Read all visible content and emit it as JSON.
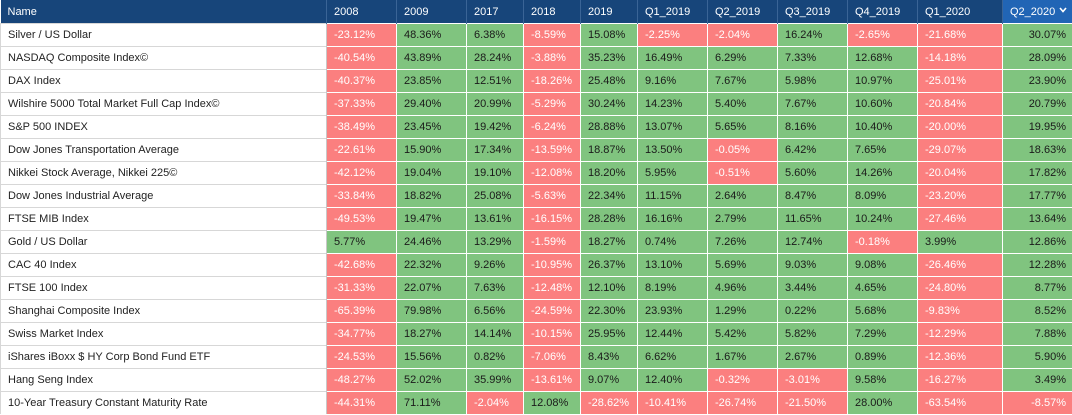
{
  "columns": [
    "Name",
    "2008",
    "2009",
    "2017",
    "2018",
    "2019",
    "Q1_2019",
    "Q2_2019",
    "Q3_2019",
    "Q4_2019",
    "Q1_2020",
    "Q2_2020"
  ],
  "sorted_column": "Q2_2020",
  "sort_icon": "chevron-down-icon",
  "colors": {
    "header": "#17457a",
    "header_sorted": "#2165b5",
    "positive": "#80c47f",
    "negative": "#fb7f7f"
  },
  "rows": [
    {
      "name": "Silver / US Dollar",
      "values": [
        "-23.12%",
        "48.36%",
        "6.38%",
        "-8.59%",
        "15.08%",
        "-2.25%",
        "-2.04%",
        "16.24%",
        "-2.65%",
        "-21.68%",
        "30.07%"
      ]
    },
    {
      "name": "NASDAQ Composite Index©",
      "values": [
        "-40.54%",
        "43.89%",
        "28.24%",
        "-3.88%",
        "35.23%",
        "16.49%",
        "6.29%",
        "7.33%",
        "12.68%",
        "-14.18%",
        "28.09%"
      ]
    },
    {
      "name": "DAX Index",
      "values": [
        "-40.37%",
        "23.85%",
        "12.51%",
        "-18.26%",
        "25.48%",
        "9.16%",
        "7.67%",
        "5.98%",
        "10.97%",
        "-25.01%",
        "23.90%"
      ]
    },
    {
      "name": "Wilshire 5000 Total Market Full Cap Index©",
      "values": [
        "-37.33%",
        "29.40%",
        "20.99%",
        "-5.29%",
        "30.24%",
        "14.23%",
        "5.40%",
        "7.67%",
        "10.60%",
        "-20.84%",
        "20.79%"
      ]
    },
    {
      "name": "S&P 500 INDEX",
      "values": [
        "-38.49%",
        "23.45%",
        "19.42%",
        "-6.24%",
        "28.88%",
        "13.07%",
        "5.65%",
        "8.16%",
        "10.40%",
        "-20.00%",
        "19.95%"
      ]
    },
    {
      "name": "Dow Jones Transportation Average",
      "values": [
        "-22.61%",
        "15.90%",
        "17.34%",
        "-13.59%",
        "18.87%",
        "13.50%",
        "-0.05%",
        "6.42%",
        "7.65%",
        "-29.07%",
        "18.63%"
      ]
    },
    {
      "name": "Nikkei Stock Average, Nikkei 225©",
      "values": [
        "-42.12%",
        "19.04%",
        "19.10%",
        "-12.08%",
        "18.20%",
        "5.95%",
        "-0.51%",
        "5.60%",
        "14.26%",
        "-20.04%",
        "17.82%"
      ]
    },
    {
      "name": "Dow Jones Industrial Average",
      "values": [
        "-33.84%",
        "18.82%",
        "25.08%",
        "-5.63%",
        "22.34%",
        "11.15%",
        "2.64%",
        "8.47%",
        "8.09%",
        "-23.20%",
        "17.77%"
      ]
    },
    {
      "name": "FTSE MIB Index",
      "values": [
        "-49.53%",
        "19.47%",
        "13.61%",
        "-16.15%",
        "28.28%",
        "16.16%",
        "2.79%",
        "11.65%",
        "10.24%",
        "-27.46%",
        "13.64%"
      ]
    },
    {
      "name": "Gold / US Dollar",
      "values": [
        "5.77%",
        "24.46%",
        "13.29%",
        "-1.59%",
        "18.27%",
        "0.74%",
        "7.26%",
        "12.74%",
        "-0.18%",
        "3.99%",
        "12.86%"
      ]
    },
    {
      "name": "CAC 40 Index",
      "values": [
        "-42.68%",
        "22.32%",
        "9.26%",
        "-10.95%",
        "26.37%",
        "13.10%",
        "5.69%",
        "9.03%",
        "9.08%",
        "-26.46%",
        "12.28%"
      ]
    },
    {
      "name": "FTSE 100 Index",
      "values": [
        "-31.33%",
        "22.07%",
        "7.63%",
        "-12.48%",
        "12.10%",
        "8.19%",
        "4.96%",
        "3.44%",
        "4.65%",
        "-24.80%",
        "8.77%"
      ]
    },
    {
      "name": "Shanghai Composite Index",
      "values": [
        "-65.39%",
        "79.98%",
        "6.56%",
        "-24.59%",
        "22.30%",
        "23.93%",
        "1.29%",
        "0.22%",
        "5.68%",
        "-9.83%",
        "8.52%"
      ]
    },
    {
      "name": "Swiss Market Index",
      "values": [
        "-34.77%",
        "18.27%",
        "14.14%",
        "-10.15%",
        "25.95%",
        "12.44%",
        "5.42%",
        "5.82%",
        "7.29%",
        "-12.29%",
        "7.88%"
      ]
    },
    {
      "name": "iShares iBoxx $ HY Corp Bond Fund ETF",
      "values": [
        "-24.53%",
        "15.56%",
        "0.82%",
        "-7.06%",
        "8.43%",
        "6.62%",
        "1.67%",
        "2.67%",
        "0.89%",
        "-12.36%",
        "5.90%"
      ]
    },
    {
      "name": "Hang Seng Index",
      "values": [
        "-48.27%",
        "52.02%",
        "35.99%",
        "-13.61%",
        "9.07%",
        "12.40%",
        "-0.32%",
        "-3.01%",
        "9.58%",
        "-16.27%",
        "3.49%"
      ]
    },
    {
      "name": "10-Year Treasury Constant Maturity Rate",
      "values": [
        "-44.31%",
        "71.11%",
        "-2.04%",
        "12.08%",
        "-28.62%",
        "-10.41%",
        "-26.74%",
        "-21.50%",
        "28.00%",
        "-63.54%",
        "-8.57%"
      ]
    }
  ]
}
